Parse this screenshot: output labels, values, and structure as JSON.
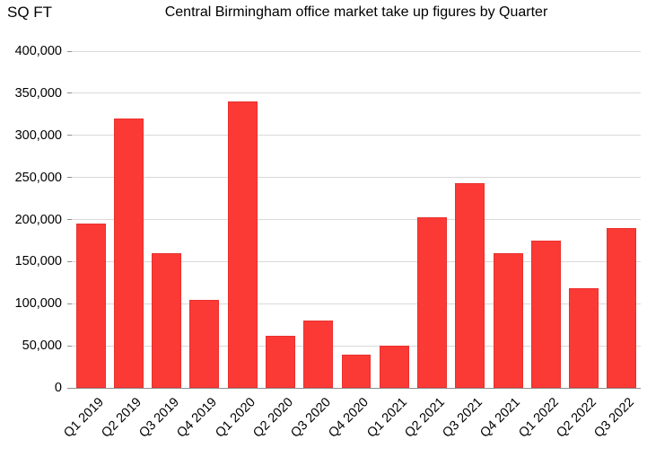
{
  "chart_data": {
    "type": "bar",
    "title": "Central Birmingham office market take up figures by Quarter",
    "ylabel": "SQ FT",
    "xlabel": "",
    "categories": [
      "Q1 2019",
      "Q2 2019",
      "Q3 2019",
      "Q4 2019",
      "Q1 2020",
      "Q2 2020",
      "Q3 2020",
      "Q4 2020",
      "Q1 2021",
      "Q2 2021",
      "Q3 2021",
      "Q4 2021",
      "Q1 2022",
      "Q2 2022",
      "Q3 2022"
    ],
    "values": [
      195000,
      320000,
      160000,
      105000,
      340000,
      62000,
      80000,
      40000,
      50000,
      203000,
      243000,
      160000,
      175000,
      118000,
      190000
    ],
    "ylim": [
      0,
      400000
    ],
    "ytick_interval": 50000,
    "ytick_labels": [
      "0",
      "50,000",
      "100,000",
      "150,000",
      "200,000",
      "250,000",
      "300,000",
      "350,000",
      "400,000"
    ],
    "grid": true,
    "legend": "none",
    "bar_color": "#fb3a36",
    "gridline_color": "#d9d9d9",
    "axis_color": "#8f8f8f",
    "text_color": "#000000"
  }
}
